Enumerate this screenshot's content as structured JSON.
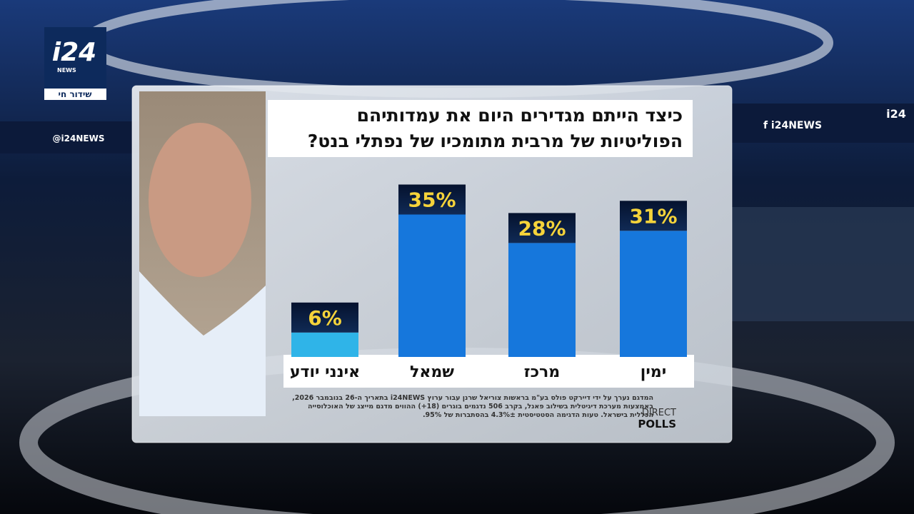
{
  "channel": {
    "logo": "i24",
    "logo_sub": "NEWS",
    "live": "שידור חי",
    "ticker_left": "@i24NEWS",
    "ticker_right": "f i24NEWS",
    "ticker_far": "i24"
  },
  "graphic": {
    "title_lines": [
      "כיצד הייתם מגדירים היום את עמדותיהם",
      "הפוליטיות של מרבית מתומכיו של נפתלי בנט?"
    ],
    "footnote": "המדגם נערך על ידי דיירקט פולס בע\"מ בראשות צוריאל שרנן עבור ערוץ i24NEWS בתאריך ה-26 בנובמבר 2026, באמצעות מערכת דיגיטלית בשילוב פאנל, בקרב 506 נדגמים בוגרים (18+) ההווים מדגם מייצג של האוכלוסייה הכללית בישראל. טעות הדגימה הסטטיסטית 4.3%± בהסתברות של 95%.",
    "brand_top": "DIRECT",
    "brand_bottom": "POLLS"
  },
  "chart_data": {
    "type": "bar",
    "categories": [
      "אינני יודע",
      "שמאל",
      "מרכז",
      "ימין"
    ],
    "values": [
      6,
      35,
      28,
      31
    ],
    "value_labels": [
      "6%",
      "35%",
      "28%",
      "31%"
    ],
    "colors": [
      "#2fb4e8",
      "#1677dc",
      "#1677dc",
      "#1677dc"
    ],
    "label_color": "#f5d33a"
  }
}
